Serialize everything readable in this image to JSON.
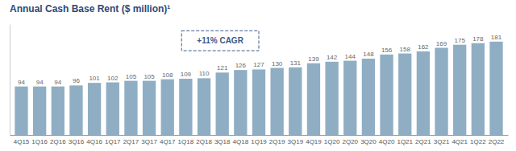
{
  "chart_data": {
    "type": "bar",
    "title": "Annual Cash Base Rent ($ million)¹",
    "categories": [
      "4Q15",
      "1Q16",
      "2Q16",
      "3Q16",
      "4Q16",
      "1Q17",
      "2Q17",
      "3Q17",
      "4Q17",
      "1Q18",
      "2Q18",
      "3Q18",
      "4Q18",
      "1Q19",
      "2Q19",
      "3Q19",
      "4Q19",
      "1Q20",
      "2Q20",
      "3Q20",
      "4Q20",
      "1Q21",
      "2Q21",
      "3Q21",
      "4Q21",
      "1Q22",
      "2Q22"
    ],
    "values": [
      94,
      94,
      94,
      96,
      101,
      102,
      105,
      105,
      108,
      109,
      110,
      121,
      126,
      127,
      130,
      131,
      139,
      142,
      144,
      148,
      156,
      158,
      162,
      169,
      175,
      178,
      181
    ],
    "color": "#8faec4",
    "ylim": [
      0,
      215
    ],
    "data_labels": true,
    "tick_labels": "x",
    "grid": false,
    "annotation": "+11% CAGR"
  }
}
